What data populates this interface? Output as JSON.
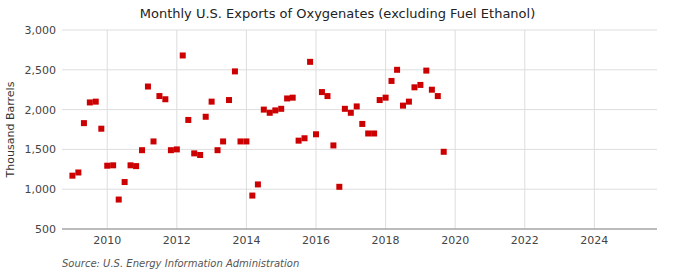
{
  "chart_data": {
    "type": "scatter",
    "title": "Monthly U.S. Exports of Oxygenates (excluding Fuel Ethanol)",
    "ylabel": "Thousand Barrels",
    "annotation": "Source: U.S. Energy Information Administration",
    "color": "#cc0000",
    "marker": "square",
    "grid": true,
    "xlim": [
      2008.7,
      2025.8
    ],
    "xticks": [
      2010,
      2012,
      2014,
      2016,
      2018,
      2020,
      2022,
      2024
    ],
    "ylim": [
      500,
      3000
    ],
    "yticks": [
      500,
      {
        "value": 1000,
        "label": "1,000"
      },
      {
        "value": 1500,
        "label": "1,500"
      },
      {
        "value": 2000,
        "label": "2,000"
      },
      {
        "value": 2500,
        "label": "2,500"
      },
      {
        "value": 3000,
        "label": "3,000"
      }
    ],
    "x": [
      2009.0,
      2009.17,
      2009.33,
      2009.5,
      2009.67,
      2009.83,
      2010.0,
      2010.17,
      2010.33,
      2010.5,
      2010.67,
      2010.83,
      2011.0,
      2011.17,
      2011.33,
      2011.5,
      2011.67,
      2011.83,
      2012.0,
      2012.17,
      2012.33,
      2012.5,
      2012.67,
      2012.83,
      2013.0,
      2013.17,
      2013.33,
      2013.5,
      2013.67,
      2013.83,
      2014.0,
      2014.17,
      2014.33,
      2014.5,
      2014.67,
      2014.83,
      2015.0,
      2015.17,
      2015.33,
      2015.5,
      2015.67,
      2015.83,
      2016.0,
      2016.17,
      2016.33,
      2016.5,
      2016.67,
      2016.83,
      2017.0,
      2017.17,
      2017.33,
      2017.5,
      2017.67,
      2017.83,
      2018.0,
      2018.17,
      2018.33,
      2018.5,
      2018.67,
      2018.83,
      2019.0,
      2019.17,
      2019.33,
      2019.5,
      2019.67
    ],
    "values": [
      1170,
      1210,
      1830,
      2090,
      2100,
      1760,
      1295,
      1300,
      870,
      1090,
      1300,
      1290,
      1490,
      2290,
      1600,
      2170,
      2130,
      1490,
      1500,
      2680,
      1870,
      1450,
      1430,
      1910,
      2100,
      1490,
      1600,
      2120,
      2480,
      1600,
      1600,
      920,
      1060,
      2000,
      1960,
      1990,
      2010,
      2140,
      2150,
      1610,
      1640,
      2600,
      1690,
      2220,
      2170,
      1550,
      1030,
      2010,
      1960,
      2040,
      1820,
      1700,
      1700,
      2120,
      2150,
      2360,
      2500,
      2050,
      2100,
      2280,
      2310,
      2490,
      2250,
      2170,
      1470
    ]
  }
}
